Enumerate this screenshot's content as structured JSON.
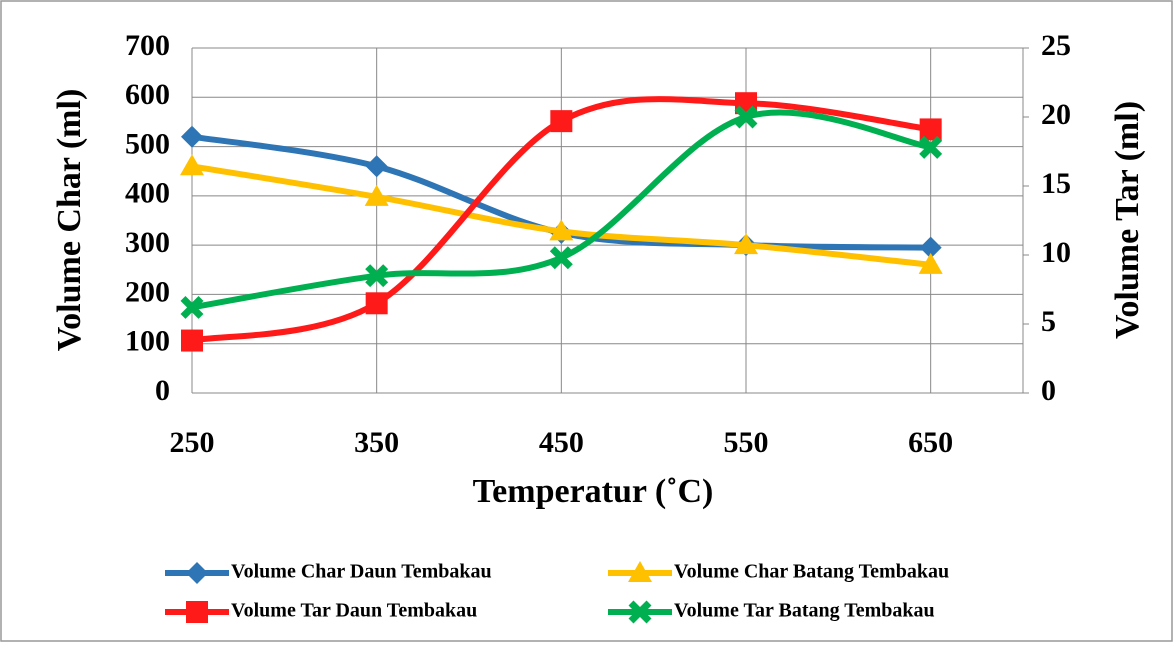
{
  "chart_data": {
    "type": "line",
    "xlabel": "Temperatur (˚C)",
    "ylabel": "Volume Char (ml)",
    "y2label": "Volume Tar (ml)",
    "x": [
      250,
      350,
      450,
      550,
      650
    ],
    "xlim": [
      250,
      700
    ],
    "xticks": [
      250,
      350,
      450,
      550,
      650
    ],
    "ylim": [
      0,
      700
    ],
    "yticks": [
      0,
      100,
      200,
      300,
      400,
      500,
      600,
      700
    ],
    "y2lim": [
      0,
      25
    ],
    "y2ticks": [
      0,
      5,
      10,
      15,
      20,
      25
    ],
    "grid": true,
    "smooth": true,
    "legend": "bottom",
    "series": [
      {
        "name": "Volume Char Daun Tembakau",
        "color": "#2e75b6",
        "marker": "diamond",
        "values": [
          520,
          460,
          325,
          300,
          295
        ]
      },
      {
        "name": "Volume Char Batang Tembakau",
        "color": "#ffc000",
        "marker": "triangle",
        "values": [
          460,
          398,
          328,
          300,
          260
        ]
      },
      {
        "name": "Volume Tar Daun Tembakau",
        "color": "#ff1a1a",
        "marker": "square",
        "axis": "y2",
        "values": [
          3.8,
          6.5,
          19.7,
          21.0,
          19.1
        ]
      },
      {
        "name": "Volume Tar Batang Tembakau",
        "color": "#00b050",
        "marker": "x",
        "axis": "y2",
        "values": [
          6.2,
          8.5,
          9.8,
          20.0,
          17.8
        ]
      }
    ]
  }
}
